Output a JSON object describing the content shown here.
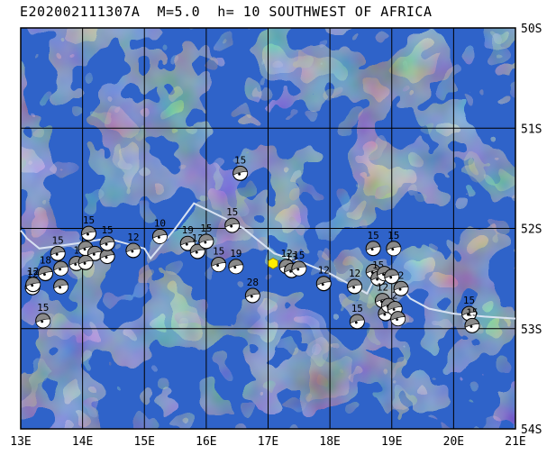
{
  "title": "E202002111307A  M=5.0  h= 10 SOUTHWEST OF AFRICA",
  "map": {
    "lon_range": [
      13,
      21
    ],
    "lat_range": [
      -54,
      -50
    ],
    "lon_ticks": [
      {
        "v": 13,
        "label": "13E"
      },
      {
        "v": 14,
        "label": "14E"
      },
      {
        "v": 15,
        "label": "15E"
      },
      {
        "v": 16,
        "label": "16E"
      },
      {
        "v": 17,
        "label": "17E"
      },
      {
        "v": 18,
        "label": "18E"
      },
      {
        "v": 19,
        "label": "19E"
      },
      {
        "v": 20,
        "label": "20E"
      },
      {
        "v": 21,
        "label": "21E"
      }
    ],
    "lat_ticks": [
      {
        "v": -50,
        "label": "50S"
      },
      {
        "v": -51,
        "label": "51S"
      },
      {
        "v": -52,
        "label": "52S"
      },
      {
        "v": -53,
        "label": "53S"
      },
      {
        "v": -54,
        "label": "54S"
      }
    ],
    "colors": {
      "ocean": "#2f63c9",
      "ocean_light": "#4a80dd",
      "grid": "#000000",
      "ridge": "#d8e2f2",
      "event_star": "#ffee00"
    },
    "event_location": {
      "lon": 17.08,
      "lat": -52.35
    },
    "ridge_line": [
      [
        13.0,
        -52.02
      ],
      [
        13.1,
        -52.1
      ],
      [
        13.3,
        -52.2
      ],
      [
        13.9,
        -52.15
      ],
      [
        14.4,
        -52.1
      ],
      [
        15.0,
        -52.2
      ],
      [
        15.1,
        -52.3
      ],
      [
        15.5,
        -52.0
      ],
      [
        15.8,
        -51.75
      ],
      [
        16.3,
        -51.9
      ],
      [
        16.6,
        -52.0
      ],
      [
        17.1,
        -52.25
      ],
      [
        17.6,
        -52.35
      ],
      [
        18.0,
        -52.45
      ],
      [
        18.3,
        -52.55
      ],
      [
        18.6,
        -52.65
      ],
      [
        18.8,
        -52.4
      ],
      [
        19.1,
        -52.55
      ],
      [
        19.3,
        -52.7
      ],
      [
        19.6,
        -52.8
      ],
      [
        20.0,
        -52.85
      ],
      [
        20.5,
        -52.88
      ],
      [
        21.0,
        -52.9
      ]
    ],
    "mechanisms": [
      {
        "lon": 13.36,
        "lat": -52.92,
        "label": "15"
      },
      {
        "lon": 13.19,
        "lat": -52.59,
        "label": "12"
      },
      {
        "lon": 13.2,
        "lat": -52.56,
        "label": "12"
      },
      {
        "lon": 13.4,
        "lat": -52.45,
        "label": "18"
      },
      {
        "lon": 13.65,
        "lat": -52.58,
        "label": ""
      },
      {
        "lon": 13.65,
        "lat": -52.4,
        "label": ""
      },
      {
        "lon": 13.6,
        "lat": -52.25,
        "label": "15"
      },
      {
        "lon": 13.9,
        "lat": -52.35,
        "label": "1"
      },
      {
        "lon": 14.05,
        "lat": -52.2,
        "label": ""
      },
      {
        "lon": 14.1,
        "lat": -52.05,
        "label": "15"
      },
      {
        "lon": 14.2,
        "lat": -52.25,
        "label": ""
      },
      {
        "lon": 14.4,
        "lat": -52.28,
        "label": ""
      },
      {
        "lon": 14.4,
        "lat": -52.15,
        "label": "15"
      },
      {
        "lon": 14.05,
        "lat": -52.34,
        "label": ""
      },
      {
        "lon": 14.82,
        "lat": -52.22,
        "label": "12"
      },
      {
        "lon": 15.25,
        "lat": -52.08,
        "label": "10"
      },
      {
        "lon": 15.7,
        "lat": -52.15,
        "label": "19"
      },
      {
        "lon": 15.86,
        "lat": -52.23,
        "label": "12"
      },
      {
        "lon": 16.0,
        "lat": -52.13,
        "label": "15"
      },
      {
        "lon": 16.42,
        "lat": -51.97,
        "label": "15"
      },
      {
        "lon": 16.55,
        "lat": -51.45,
        "label": "15"
      },
      {
        "lon": 16.2,
        "lat": -52.36,
        "label": "15"
      },
      {
        "lon": 16.48,
        "lat": -52.38,
        "label": "19"
      },
      {
        "lon": 16.75,
        "lat": -52.67,
        "label": "28"
      },
      {
        "lon": 17.3,
        "lat": -52.38,
        "label": "12"
      },
      {
        "lon": 17.38,
        "lat": -52.42,
        "label": "13"
      },
      {
        "lon": 17.5,
        "lat": -52.4,
        "label": "15"
      },
      {
        "lon": 17.9,
        "lat": -52.55,
        "label": "12"
      },
      {
        "lon": 18.4,
        "lat": -52.58,
        "label": "12"
      },
      {
        "lon": 18.44,
        "lat": -52.93,
        "label": "15"
      },
      {
        "lon": 18.7,
        "lat": -52.2,
        "label": "15"
      },
      {
        "lon": 18.7,
        "lat": -52.43,
        "label": ""
      },
      {
        "lon": 18.78,
        "lat": -52.5,
        "label": "15"
      },
      {
        "lon": 18.88,
        "lat": -52.45,
        "label": ""
      },
      {
        "lon": 18.85,
        "lat": -52.72,
        "label": "12"
      },
      {
        "lon": 18.9,
        "lat": -52.85,
        "label": ""
      },
      {
        "lon": 18.95,
        "lat": -52.77,
        "label": ""
      },
      {
        "lon": 19.03,
        "lat": -52.2,
        "label": "15"
      },
      {
        "lon": 19.0,
        "lat": -52.48,
        "label": ""
      },
      {
        "lon": 19.05,
        "lat": -52.8,
        "label": "2"
      },
      {
        "lon": 19.15,
        "lat": -52.6,
        "label": "2"
      },
      {
        "lon": 19.1,
        "lat": -52.9,
        "label": ""
      },
      {
        "lon": 20.25,
        "lat": -52.85,
        "label": "15"
      },
      {
        "lon": 20.3,
        "lat": -52.97,
        "label": "15"
      }
    ]
  }
}
